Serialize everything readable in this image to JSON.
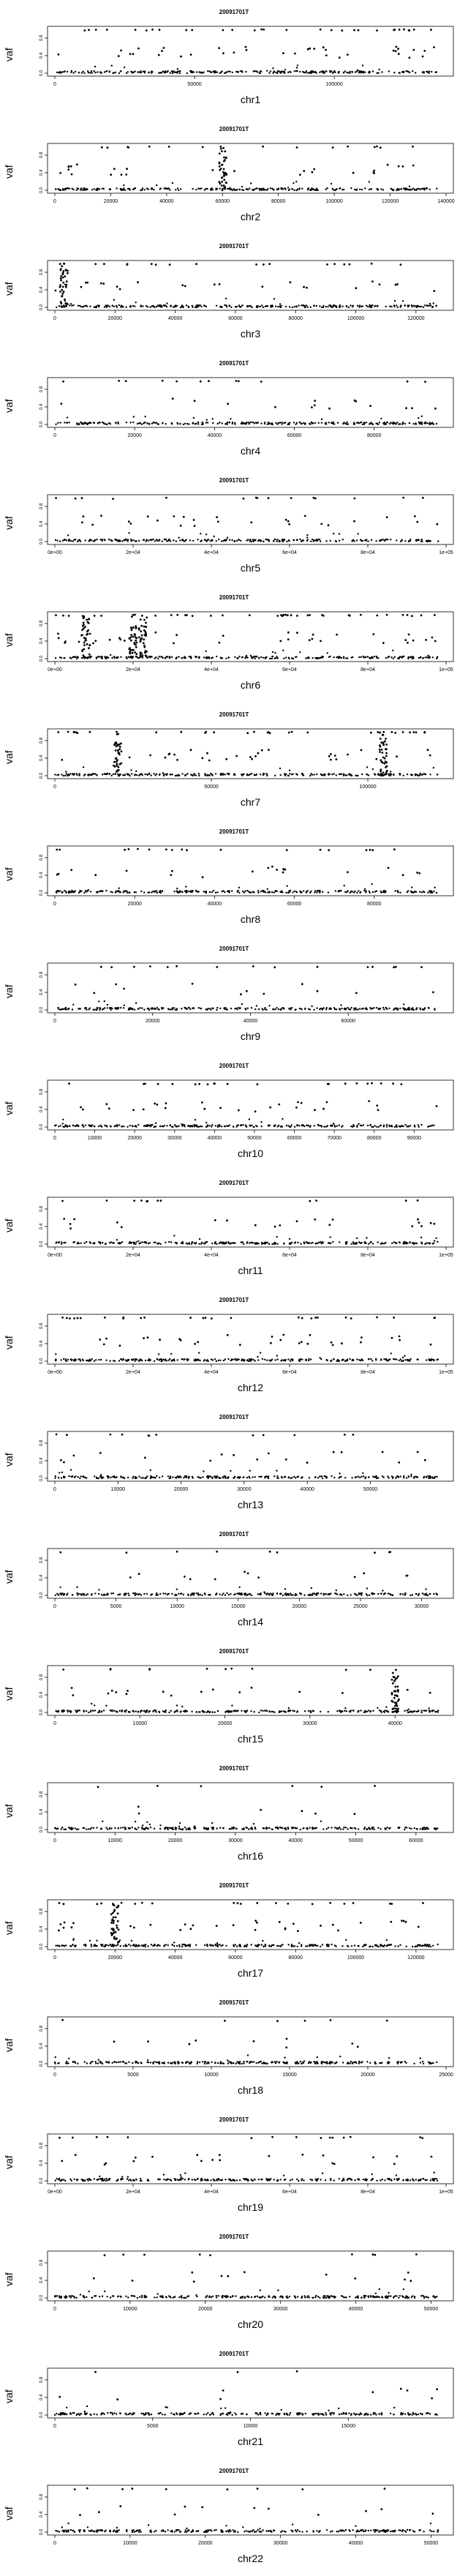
{
  "sample_title": "20091701T",
  "y_axis_label": "vaf",
  "y_ticks": [
    "0.0",
    "0.4",
    "0.8"
  ],
  "chart_data": [
    {
      "type": "scatter",
      "title": "20091701T",
      "xlabel": "chr1",
      "ylabel": "vaf",
      "xlim": [
        0,
        140000
      ],
      "ylim": [
        0,
        1
      ],
      "x_ticks": [
        "0",
        "50000",
        "100000"
      ],
      "x_tick_values": [
        0,
        50000,
        100000
      ],
      "density_high": 0.5,
      "density_mid": 0.6,
      "clusters": []
    },
    {
      "type": "scatter",
      "title": "20091701T",
      "xlabel": "chr2",
      "ylabel": "vaf",
      "xlim": [
        0,
        140000
      ],
      "ylim": [
        0,
        1
      ],
      "x_ticks": [
        "0",
        "20000",
        "40000",
        "60000",
        "80000",
        "100000",
        "120000",
        "140000"
      ],
      "x_tick_values": [
        0,
        20000,
        40000,
        60000,
        80000,
        100000,
        120000,
        140000
      ],
      "density_high": 0.25,
      "density_mid": 0.45,
      "clusters": [
        60000
      ]
    },
    {
      "type": "scatter",
      "title": "20091701T",
      "xlabel": "chr3",
      "ylabel": "vaf",
      "xlim": [
        0,
        130000
      ],
      "ylim": [
        0,
        1
      ],
      "x_ticks": [
        "0",
        "20000",
        "40000",
        "60000",
        "80000",
        "100000",
        "120000"
      ],
      "x_tick_values": [
        0,
        20000,
        40000,
        60000,
        80000,
        100000,
        120000
      ],
      "density_high": 0.3,
      "density_mid": 0.4,
      "clusters": [
        3000
      ]
    },
    {
      "type": "scatter",
      "title": "20091701T",
      "xlabel": "chr4",
      "ylabel": "vaf",
      "xlim": [
        0,
        98000
      ],
      "ylim": [
        0,
        1
      ],
      "x_ticks": [
        "0",
        "20000",
        "40000",
        "60000",
        "80000"
      ],
      "x_tick_values": [
        0,
        20000,
        40000,
        60000,
        80000
      ],
      "density_high": 0.2,
      "density_mid": 0.25,
      "clusters": []
    },
    {
      "type": "scatter",
      "title": "20091701T",
      "xlabel": "chr5",
      "ylabel": "vaf",
      "xlim": [
        0,
        100000
      ],
      "ylim": [
        0,
        1
      ],
      "x_ticks": [
        "0e+00",
        "2e+04",
        "4e+04",
        "6e+04",
        "8e+04",
        "1e+05"
      ],
      "x_tick_values": [
        0,
        20000,
        40000,
        60000,
        80000,
        100000
      ],
      "density_high": 0.25,
      "density_mid": 0.45,
      "clusters": []
    },
    {
      "type": "scatter",
      "title": "20091701T",
      "xlabel": "chr6",
      "ylabel": "vaf",
      "xlim": [
        0,
        100000
      ],
      "ylim": [
        0,
        1
      ],
      "x_ticks": [
        "0e+00",
        "2e+04",
        "4e+04",
        "6e+04",
        "8e+04",
        "1e+05"
      ],
      "x_tick_values": [
        0,
        20000,
        40000,
        60000,
        80000,
        100000
      ],
      "density_high": 0.6,
      "density_mid": 0.6,
      "clusters": [
        8000,
        20000,
        22500
      ]
    },
    {
      "type": "scatter",
      "title": "20091701T",
      "xlabel": "chr7",
      "ylabel": "vaf",
      "xlim": [
        0,
        125000
      ],
      "ylim": [
        0,
        1
      ],
      "x_ticks": [
        "0",
        "50000",
        "100000"
      ],
      "x_tick_values": [
        0,
        50000,
        100000
      ],
      "density_high": 0.5,
      "density_mid": 0.55,
      "clusters": [
        20000,
        105000
      ]
    },
    {
      "type": "scatter",
      "title": "20091701T",
      "xlabel": "chr8",
      "ylabel": "vaf",
      "xlim": [
        0,
        98000
      ],
      "ylim": [
        0,
        1
      ],
      "x_ticks": [
        "0",
        "20000",
        "40000",
        "60000",
        "80000"
      ],
      "x_tick_values": [
        0,
        20000,
        40000,
        60000,
        80000
      ],
      "density_high": 0.3,
      "density_mid": 0.35,
      "clusters": []
    },
    {
      "type": "scatter",
      "title": "20091701T",
      "xlabel": "chr9",
      "ylabel": "vaf",
      "xlim": [
        0,
        80000
      ],
      "ylim": [
        0,
        1
      ],
      "x_ticks": [
        "0",
        "20000",
        "40000",
        "60000"
      ],
      "x_tick_values": [
        0,
        20000,
        40000,
        60000
      ],
      "density_high": 0.25,
      "density_mid": 0.2,
      "clusters": []
    },
    {
      "type": "scatter",
      "title": "20091701T",
      "xlabel": "chr10",
      "ylabel": "vaf",
      "xlim": [
        0,
        98000
      ],
      "ylim": [
        0,
        1
      ],
      "x_ticks": [
        "0",
        "10000",
        "20000",
        "30000",
        "40000",
        "50000",
        "60000",
        "70000",
        "80000",
        "90000"
      ],
      "x_tick_values": [
        0,
        10000,
        20000,
        30000,
        40000,
        50000,
        60000,
        70000,
        80000,
        90000
      ],
      "density_high": 0.35,
      "density_mid": 0.45,
      "clusters": []
    },
    {
      "type": "scatter",
      "title": "20091701T",
      "xlabel": "chr11",
      "ylabel": "vaf",
      "xlim": [
        0,
        100000
      ],
      "ylim": [
        0,
        1
      ],
      "x_ticks": [
        "0e+00",
        "2e+04",
        "4e+04",
        "6e+04",
        "8e+04",
        "1e+05"
      ],
      "x_tick_values": [
        0,
        20000,
        40000,
        60000,
        80000,
        100000
      ],
      "density_high": 0.2,
      "density_mid": 0.35,
      "clusters": []
    },
    {
      "type": "scatter",
      "title": "20091701T",
      "xlabel": "chr12",
      "ylabel": "vaf",
      "xlim": [
        0,
        100000
      ],
      "ylim": [
        0,
        1
      ],
      "x_ticks": [
        "0e+00",
        "2e+04",
        "4e+04",
        "6e+04",
        "8e+04",
        "1e+05"
      ],
      "x_tick_values": [
        0,
        20000,
        40000,
        60000,
        80000,
        100000
      ],
      "density_high": 0.45,
      "density_mid": 0.5,
      "clusters": []
    },
    {
      "type": "scatter",
      "title": "20091701T",
      "xlabel": "chr13",
      "ylabel": "vaf",
      "xlim": [
        0,
        62000
      ],
      "ylim": [
        0,
        1
      ],
      "x_ticks": [
        "0",
        "10000",
        "20000",
        "30000",
        "40000",
        "50000"
      ],
      "x_tick_values": [
        0,
        10000,
        20000,
        30000,
        40000,
        50000
      ],
      "density_high": 0.2,
      "density_mid": 0.3,
      "clusters": []
    },
    {
      "type": "scatter",
      "title": "20091701T",
      "xlabel": "chr14",
      "ylabel": "vaf",
      "xlim": [
        0,
        32000
      ],
      "ylim": [
        0,
        1
      ],
      "x_ticks": [
        "0",
        "5000",
        "10000",
        "15000",
        "20000",
        "25000",
        "30000"
      ],
      "x_tick_values": [
        0,
        5000,
        10000,
        15000,
        20000,
        25000,
        30000
      ],
      "density_high": 0.15,
      "density_mid": 0.2,
      "clusters": []
    },
    {
      "type": "scatter",
      "title": "20091701T",
      "xlabel": "chr15",
      "ylabel": "vaf",
      "xlim": [
        0,
        46000
      ],
      "ylim": [
        0,
        1
      ],
      "x_ticks": [
        "0",
        "10000",
        "20000",
        "30000",
        "40000"
      ],
      "x_tick_values": [
        0,
        10000,
        20000,
        30000,
        40000
      ],
      "density_high": 0.2,
      "density_mid": 0.3,
      "clusters": [
        40000
      ]
    },
    {
      "type": "scatter",
      "title": "20091701T",
      "xlabel": "chr16",
      "ylabel": "vaf",
      "xlim": [
        0,
        65000
      ],
      "ylim": [
        0,
        1
      ],
      "x_ticks": [
        "0",
        "10000",
        "20000",
        "30000",
        "40000",
        "50000",
        "60000"
      ],
      "x_tick_values": [
        0,
        10000,
        20000,
        30000,
        40000,
        50000,
        60000
      ],
      "density_high": 0.1,
      "density_mid": 0.1,
      "clusters": []
    },
    {
      "type": "scatter",
      "title": "20091701T",
      "xlabel": "chr17",
      "ylabel": "vaf",
      "xlim": [
        0,
        130000
      ],
      "ylim": [
        0,
        1
      ],
      "x_ticks": [
        "0",
        "20000",
        "40000",
        "60000",
        "80000",
        "100000",
        "120000"
      ],
      "x_tick_values": [
        0,
        20000,
        40000,
        60000,
        80000,
        100000,
        120000
      ],
      "density_high": 0.35,
      "density_mid": 0.55,
      "clusters": [
        20000
      ]
    },
    {
      "type": "scatter",
      "title": "20091701T",
      "xlabel": "chr18",
      "ylabel": "vaf",
      "xlim": [
        0,
        25000
      ],
      "ylim": [
        0,
        1
      ],
      "x_ticks": [
        "0",
        "5000",
        "10000",
        "15000",
        "20000",
        "25000"
      ],
      "x_tick_values": [
        0,
        5000,
        10000,
        15000,
        20000,
        25000
      ],
      "density_high": 0.1,
      "density_mid": 0.15,
      "clusters": []
    },
    {
      "type": "scatter",
      "title": "20091701T",
      "xlabel": "chr19",
      "ylabel": "vaf",
      "xlim": [
        0,
        100000
      ],
      "ylim": [
        0,
        1
      ],
      "x_ticks": [
        "0e+00",
        "2e+04",
        "4e+04",
        "6e+04",
        "8e+04",
        "1e+05"
      ],
      "x_tick_values": [
        0,
        20000,
        40000,
        60000,
        80000,
        100000
      ],
      "density_high": 0.25,
      "density_mid": 0.35,
      "clusters": []
    },
    {
      "type": "scatter",
      "title": "20091701T",
      "xlabel": "chr20",
      "ylabel": "vaf",
      "xlim": [
        0,
        52000
      ],
      "ylim": [
        0,
        1
      ],
      "x_ticks": [
        "0",
        "10000",
        "20000",
        "30000",
        "40000",
        "50000"
      ],
      "x_tick_values": [
        0,
        10000,
        20000,
        30000,
        40000,
        50000
      ],
      "density_high": 0.15,
      "density_mid": 0.2,
      "clusters": []
    },
    {
      "type": "scatter",
      "title": "20091701T",
      "xlabel": "chr21",
      "ylabel": "vaf",
      "xlim": [
        0,
        20000
      ],
      "ylim": [
        0,
        1
      ],
      "x_ticks": [
        "0",
        "5000",
        "10000",
        "15000"
      ],
      "x_tick_values": [
        0,
        5000,
        10000,
        15000
      ],
      "density_high": 0.05,
      "density_mid": 0.15,
      "clusters": []
    },
    {
      "type": "scatter",
      "title": "20091701T",
      "xlabel": "chr22",
      "ylabel": "vaf",
      "xlim": [
        0,
        52000
      ],
      "ylim": [
        0,
        1
      ],
      "x_ticks": [
        "0",
        "10000",
        "20000",
        "30000",
        "40000",
        "50000"
      ],
      "x_tick_values": [
        0,
        10000,
        20000,
        30000,
        40000,
        50000
      ],
      "density_high": 0.15,
      "density_mid": 0.2,
      "clusters": []
    }
  ]
}
